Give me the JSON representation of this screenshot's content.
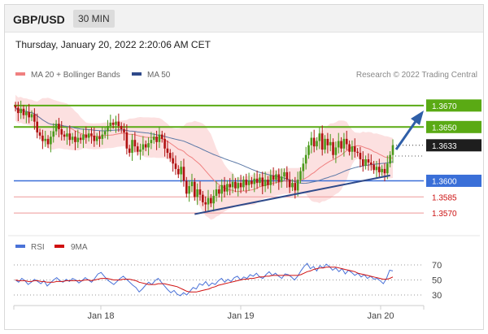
{
  "header": {
    "pair": "GBP/USD",
    "interval": "30 MIN"
  },
  "timestamp": "Thursday, January 20, 2022 2:20:06 AM CET",
  "legend": {
    "bollinger": "MA 20 + Bollinger Bands",
    "ma50": "MA 50",
    "credit": "Research © 2022 Trading Central",
    "rsi": "RSI",
    "ma9": "9MA"
  },
  "colors": {
    "bollinger": "#f08080",
    "band_fill": "#fbd5d5",
    "ma50": "#5a78a6",
    "resistance": "#5aaa14",
    "support": "#3a6fd8",
    "support_minor": "#ee9999",
    "trendline": "#2f4a8a",
    "arrow": "#2f5fa8",
    "candle_up": "#4a9a1a",
    "candle_down": "#b01010",
    "rsi": "#4a72d8",
    "rsi_ma": "#d01010"
  },
  "chart_data": [
    {
      "type": "candlestick",
      "title": "GBP/USD 30 MIN",
      "x_ticks": [
        "Jan 18",
        "Jan 19",
        "Jan 20"
      ],
      "ylim": [
        1.3555,
        1.3685
      ],
      "levels": [
        {
          "value": 1.367,
          "label": "1.3670",
          "kind": "resistance"
        },
        {
          "value": 1.365,
          "label": "1.3650",
          "kind": "resistance"
        },
        {
          "value": 1.3633,
          "label": "1.3633",
          "kind": "current"
        },
        {
          "value": 1.36,
          "label": "1.3600",
          "kind": "support"
        },
        {
          "value": 1.3585,
          "label": "1.3585",
          "kind": "minor"
        },
        {
          "value": 1.357,
          "label": "1.3570",
          "kind": "minor"
        }
      ],
      "close": [
        1.3668,
        1.3663,
        1.3667,
        1.3661,
        1.3664,
        1.3659,
        1.3662,
        1.3655,
        1.3645,
        1.3642,
        1.3637,
        1.3639,
        1.3634,
        1.3641,
        1.3646,
        1.3653,
        1.3648,
        1.3643,
        1.3641,
        1.3644,
        1.3638,
        1.3641,
        1.3636,
        1.364,
        1.3638,
        1.3643,
        1.364,
        1.3644,
        1.3642,
        1.3637,
        1.3641,
        1.3639,
        1.3643,
        1.3646,
        1.3651,
        1.3654,
        1.3652,
        1.3655,
        1.3651,
        1.3648,
        1.3645,
        1.363,
        1.3626,
        1.3638,
        1.3632,
        1.3627,
        1.3629,
        1.3634,
        1.3631,
        1.3635,
        1.3638,
        1.3641,
        1.3636,
        1.3643,
        1.3639,
        1.363,
        1.3626,
        1.3621,
        1.3616,
        1.3611,
        1.3606,
        1.3613,
        1.36,
        1.3588,
        1.3595,
        1.3599,
        1.3585,
        1.3592,
        1.3587,
        1.358,
        1.3578,
        1.3584,
        1.3579,
        1.3586,
        1.3592,
        1.3588,
        1.3596,
        1.359,
        1.3597,
        1.3594,
        1.3599,
        1.3593,
        1.3598,
        1.3594,
        1.3601,
        1.3596,
        1.36,
        1.3597,
        1.3602,
        1.3598,
        1.3603,
        1.3595,
        1.3601,
        1.3596,
        1.3605,
        1.3601,
        1.3606,
        1.3599,
        1.3604,
        1.3608,
        1.3601,
        1.3594,
        1.3598,
        1.3591,
        1.3601,
        1.3609,
        1.3616,
        1.3624,
        1.3633,
        1.364,
        1.3632,
        1.3637,
        1.3644,
        1.3629,
        1.3639,
        1.3633,
        1.3636,
        1.3624,
        1.3631,
        1.3637,
        1.363,
        1.3639,
        1.3634,
        1.3627,
        1.3632,
        1.3627,
        1.3626,
        1.362,
        1.3614,
        1.362,
        1.3617,
        1.3615,
        1.361,
        1.3613,
        1.3608,
        1.3611,
        1.3607,
        1.3616,
        1.3624,
        1.3633
      ]
    },
    {
      "type": "line",
      "title": "RSI",
      "ylim": [
        20,
        80
      ],
      "y_ticks": [
        70,
        50,
        30
      ],
      "series": [
        {
          "name": "RSI",
          "values": [
            50,
            47,
            52,
            49,
            44,
            47,
            51,
            48,
            45,
            49,
            42,
            46,
            50,
            53,
            49,
            47,
            51,
            48,
            52,
            50,
            46,
            49,
            53,
            50,
            47,
            52,
            58,
            60,
            55,
            50,
            47,
            44,
            48,
            52,
            55,
            51,
            47,
            43,
            40,
            34,
            38,
            43,
            47,
            44,
            49,
            52,
            47,
            42,
            37,
            33,
            36,
            31,
            29,
            33,
            30,
            35,
            40,
            38,
            45,
            43,
            48,
            42,
            46,
            44,
            49,
            52,
            47,
            51,
            48,
            53,
            55,
            50,
            54,
            52,
            57,
            55,
            59,
            54,
            52,
            57,
            61,
            56,
            59,
            55,
            52,
            58,
            57,
            54,
            50,
            55,
            62,
            68,
            72,
            65,
            68,
            62,
            69,
            66,
            71,
            68,
            63,
            66,
            61,
            65,
            58,
            63,
            60,
            56,
            59,
            54,
            57,
            52,
            55,
            51,
            52,
            49,
            45,
            52,
            63,
            62
          ]
        },
        {
          "name": "9MA",
          "values": [
            50,
            49,
            49,
            49,
            48,
            48,
            49,
            49,
            48,
            48,
            47,
            47,
            47,
            48,
            48,
            48,
            49,
            49,
            49,
            49,
            49,
            49,
            50,
            50,
            49,
            50,
            51,
            52,
            52,
            52,
            51,
            50,
            50,
            50,
            51,
            51,
            51,
            50,
            49,
            47,
            46,
            45,
            44,
            44,
            44,
            45,
            45,
            45,
            44,
            43,
            42,
            41,
            39,
            37,
            35,
            34,
            34,
            34,
            35,
            36,
            37,
            38,
            40,
            41,
            43,
            44,
            45,
            46,
            47,
            48,
            49,
            50,
            51,
            51,
            52,
            52,
            53,
            54,
            54,
            55,
            55,
            56,
            56,
            56,
            56,
            56,
            56,
            56,
            56,
            56,
            57,
            59,
            61,
            62,
            64,
            65,
            66,
            66,
            67,
            67,
            67,
            67,
            66,
            65,
            64,
            63,
            62,
            61,
            59,
            58,
            57,
            56,
            55,
            54,
            53,
            52,
            51,
            51,
            52,
            54
          ]
        }
      ]
    }
  ]
}
